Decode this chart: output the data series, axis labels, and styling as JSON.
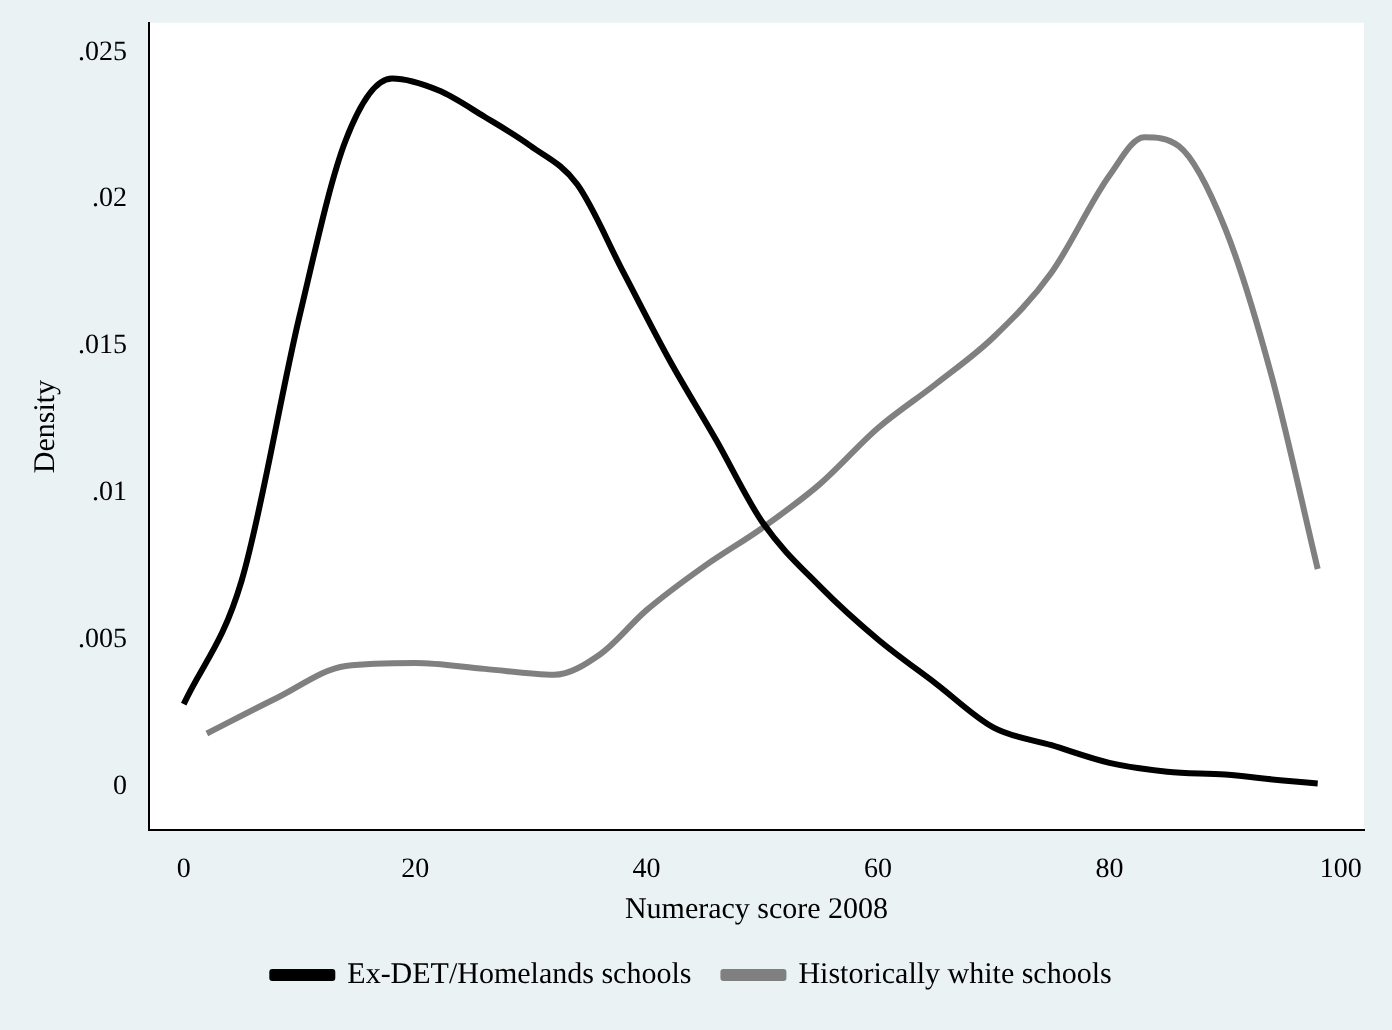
{
  "chart_data": {
    "type": "line",
    "xlabel": "Numeracy score 2008",
    "ylabel": "Density",
    "xlim": [
      -3,
      102
    ],
    "xticks": [
      0,
      20,
      40,
      60,
      80,
      100
    ],
    "ylim": [
      -0.0015,
      0.026
    ],
    "yticks": [
      {
        "value": 0,
        "label": "0"
      },
      {
        "value": 0.005,
        "label": ".005"
      },
      {
        "value": 0.01,
        "label": ".01"
      },
      {
        "value": 0.015,
        "label": ".015"
      },
      {
        "value": 0.02,
        "label": ".02"
      },
      {
        "value": 0.025,
        "label": ".025"
      }
    ],
    "grid": false,
    "legend": "bottom",
    "marker": "none",
    "line_style": "solid",
    "series": [
      {
        "name": "Ex-DET/Homelands schools",
        "color": "#000000",
        "x": [
          0,
          5,
          10,
          14,
          18,
          22,
          26,
          30,
          34,
          38,
          42,
          46,
          50,
          55,
          60,
          65,
          70,
          75,
          80,
          85,
          90,
          95,
          98
        ],
        "values": [
          0.0028,
          0.007,
          0.016,
          0.022,
          0.0241,
          0.0237,
          0.0228,
          0.0218,
          0.0205,
          0.0175,
          0.0145,
          0.0118,
          0.009,
          0.0068,
          0.005,
          0.0035,
          0.002,
          0.0014,
          0.0008,
          0.0005,
          0.0004,
          0.0002,
          0.0001
        ]
      },
      {
        "name": "Historically white schools",
        "color": "#808080",
        "x": [
          2,
          8,
          14,
          20,
          26,
          32,
          36,
          40,
          45,
          50,
          55,
          60,
          65,
          70,
          75,
          80,
          83,
          86,
          90,
          94,
          98
        ],
        "values": [
          0.0018,
          0.003,
          0.0041,
          0.0042,
          0.004,
          0.0038,
          0.0045,
          0.006,
          0.0075,
          0.0088,
          0.0103,
          0.0122,
          0.0137,
          0.0153,
          0.0175,
          0.0208,
          0.0221,
          0.0218,
          0.019,
          0.014,
          0.0074
        ]
      }
    ]
  }
}
